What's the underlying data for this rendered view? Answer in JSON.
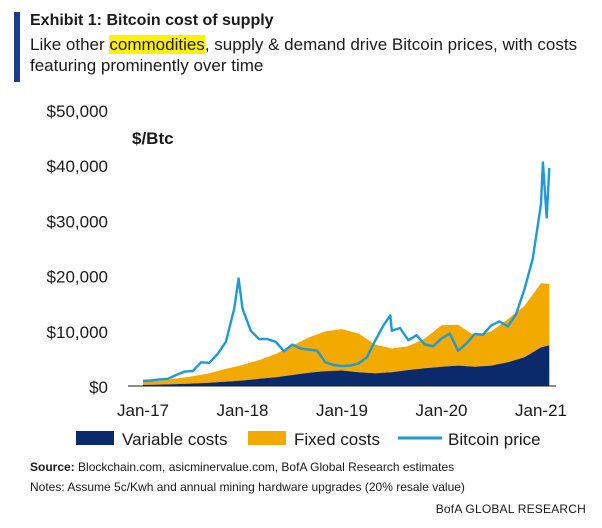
{
  "exhibit": {
    "title": "Exhibit 1: Bitcoin cost of supply",
    "subtitle_pre": "Like other ",
    "subtitle_highlight": "commodities",
    "subtitle_post": ", supply & demand drive Bitcoin prices, with costs featuring prominently over time"
  },
  "footer": {
    "source_label": "Source:",
    "source_text": " Blockchain.com, asicminervalue.com, BofA Global Research estimates",
    "notes": "Notes: Assume 5c/Kwh and annual mining hardware upgrades (20% resale value)",
    "brand": "BofA GLOBAL RESEARCH"
  },
  "colors": {
    "variable": "#0b2a6b",
    "fixed": "#f2aa00",
    "price": "#1e9ad6",
    "accent": "#1c3d8f",
    "highlight": "#fff200"
  },
  "chart_data": {
    "type": "area",
    "ylabel": "$/Btc",
    "ylim": [
      0,
      50000
    ],
    "y_ticks": [
      0,
      10000,
      20000,
      30000,
      40000,
      50000
    ],
    "y_tick_labels": [
      "$0",
      "$10,000",
      "$20,000",
      "$30,000",
      "$40,000",
      "$50,000"
    ],
    "x_ticks": [
      "2017-01",
      "2018-01",
      "2019-01",
      "2020-01",
      "2021-01"
    ],
    "x_tick_labels": [
      "Jan-17",
      "Jan-18",
      "Jan-19",
      "Jan-20",
      "Jan-21"
    ],
    "x_range": [
      "2017-01",
      "2021-02"
    ],
    "legend_position": "bottom",
    "series": [
      {
        "name": "Variable costs",
        "kind": "stacked-area",
        "x": [
          "2017-01",
          "2017-03",
          "2017-05",
          "2017-07",
          "2017-09",
          "2017-11",
          "2018-01",
          "2018-03",
          "2018-05",
          "2018-07",
          "2018-09",
          "2018-11",
          "2019-01",
          "2019-03",
          "2019-05",
          "2019-07",
          "2019-09",
          "2019-11",
          "2020-01",
          "2020-03",
          "2020-05",
          "2020-07",
          "2020-09",
          "2020-11",
          "2021-01",
          "2021-02"
        ],
        "values": [
          200,
          250,
          350,
          450,
          600,
          800,
          1000,
          1300,
          1600,
          2000,
          2400,
          2700,
          2800,
          2500,
          2300,
          2500,
          2900,
          3200,
          3500,
          3700,
          3500,
          3700,
          4300,
          5200,
          7000,
          7400
        ]
      },
      {
        "name": "Fixed costs",
        "kind": "stacked-area",
        "x": [
          "2017-01",
          "2017-03",
          "2017-05",
          "2017-07",
          "2017-09",
          "2017-11",
          "2018-01",
          "2018-03",
          "2018-05",
          "2018-07",
          "2018-09",
          "2018-11",
          "2019-01",
          "2019-03",
          "2019-05",
          "2019-07",
          "2019-09",
          "2019-11",
          "2020-01",
          "2020-03",
          "2020-05",
          "2020-07",
          "2020-09",
          "2020-11",
          "2021-01",
          "2021-02"
        ],
        "values": [
          500,
          700,
          1000,
          1300,
          1700,
          2300,
          2800,
          3400,
          4200,
          5300,
          6400,
          7200,
          7500,
          7000,
          5200,
          4300,
          4300,
          5400,
          7500,
          7400,
          5600,
          6200,
          7800,
          9300,
          11600,
          11100
        ]
      },
      {
        "name": "Bitcoin price",
        "kind": "line",
        "x": [
          "2017-01",
          "2017-02",
          "2017-03",
          "2017-04",
          "2017-05",
          "2017-06",
          "2017-07",
          "2017-08",
          "2017-09",
          "2017-10",
          "2017-11",
          "2017-12",
          "2017-12-17",
          "2018-01",
          "2018-02",
          "2018-03",
          "2018-04",
          "2018-05",
          "2018-06",
          "2018-07",
          "2018-08",
          "2018-09",
          "2018-10",
          "2018-11",
          "2018-12",
          "2019-01",
          "2019-02",
          "2019-03",
          "2019-04",
          "2019-05",
          "2019-06",
          "2019-06-26",
          "2019-07",
          "2019-08",
          "2019-09",
          "2019-10",
          "2019-11",
          "2019-12",
          "2020-01",
          "2020-02",
          "2020-03",
          "2020-04",
          "2020-05",
          "2020-06",
          "2020-07",
          "2020-08",
          "2020-09",
          "2020-10",
          "2020-11",
          "2020-12",
          "2021-01",
          "2021-01-08",
          "2021-01-22",
          "2021-02"
        ],
        "values": [
          900,
          1000,
          1200,
          1300,
          2000,
          2600,
          2700,
          4300,
          4200,
          5800,
          8000,
          14000,
          19500,
          14000,
          10000,
          8500,
          8500,
          8000,
          6300,
          7500,
          6800,
          6600,
          6400,
          4300,
          3800,
          3600,
          3700,
          4100,
          5200,
          8200,
          11000,
          12800,
          10000,
          10500,
          8300,
          9200,
          7500,
          7200,
          8600,
          9500,
          6400,
          7700,
          9400,
          9300,
          11000,
          11700,
          10800,
          13000,
          17500,
          23000,
          33000,
          40500,
          30500,
          39500
        ]
      }
    ]
  }
}
